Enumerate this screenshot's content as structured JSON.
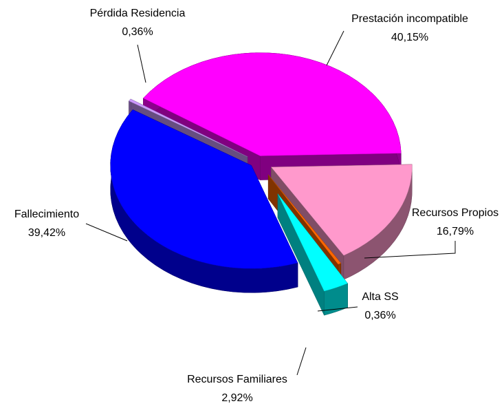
{
  "chart_data": {
    "type": "pie",
    "categories": [
      "Prestación incompatible",
      "Recursos Propios",
      "Alta SS",
      "Recursos Familiares",
      "Fallecimiento",
      "Pérdida Residencia"
    ],
    "values": [
      40.15,
      16.79,
      0.36,
      2.92,
      39.42,
      0.36
    ],
    "value_labels": [
      "40,15%",
      "16,79%",
      "0,36%",
      "2,92%",
      "39,42%",
      "0,36%"
    ],
    "colors": [
      "#ff00ff",
      "#ff99cc",
      "#ff6600",
      "#00ffff",
      "#0000ff",
      "#cc99ff"
    ]
  }
}
